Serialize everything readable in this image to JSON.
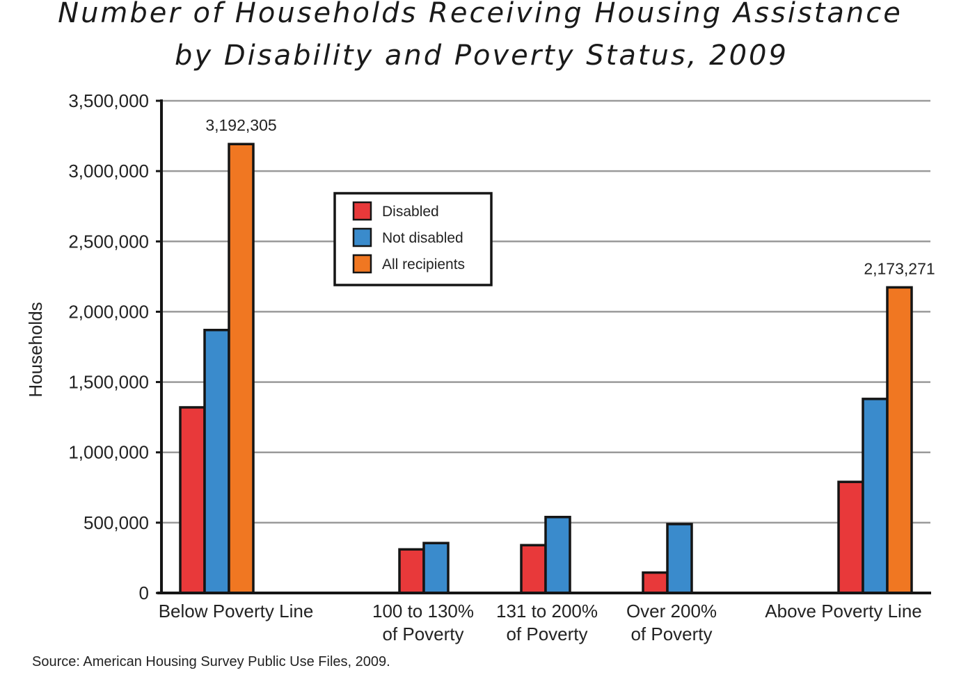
{
  "chart_data": {
    "type": "bar",
    "title_lines": [
      "Number of Households Receiving Housing Assistance",
      "by Disability and Poverty Status, 2009"
    ],
    "ylabel": "Households",
    "xlabel": "",
    "ylim": [
      0,
      3500000
    ],
    "yticks": [
      0,
      500000,
      1000000,
      1500000,
      2000000,
      2500000,
      3000000,
      3500000
    ],
    "ytick_labels": [
      "0",
      "500,000",
      "1,000,000",
      "1,500,000",
      "2,000,000",
      "2,500,000",
      "3,000,000",
      "3,500,000"
    ],
    "grid": true,
    "legend_position": "top-center",
    "categories": [
      [
        "Below Poverty Line"
      ],
      [
        "100 to 130%",
        "of Poverty"
      ],
      [
        "131 to 200%",
        "of Poverty"
      ],
      [
        "Over 200%",
        "of Poverty"
      ],
      [
        "Above Poverty Line"
      ]
    ],
    "series": [
      {
        "name": "Disabled",
        "color": "#e8393a",
        "values": [
          1320000,
          310000,
          340000,
          145000,
          790000
        ]
      },
      {
        "name": "Not disabled",
        "color": "#3a8bcc",
        "values": [
          1870000,
          355000,
          540000,
          490000,
          1380000
        ]
      },
      {
        "name": "All recipients",
        "color": "#f07722",
        "values": [
          3192305,
          null,
          null,
          null,
          2173271
        ]
      }
    ],
    "data_labels": [
      {
        "category": 0,
        "series": 2,
        "text": "3,192,305"
      },
      {
        "category": 4,
        "series": 2,
        "text": "2,173,271"
      }
    ],
    "source": "Source: American Housing Survey Public Use Files, 2009."
  }
}
